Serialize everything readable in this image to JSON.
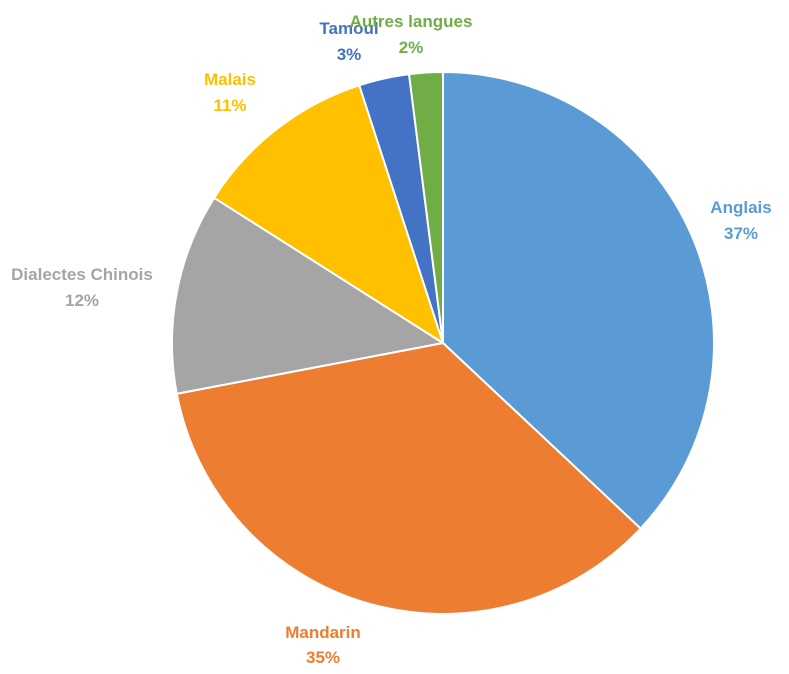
{
  "chart_data": {
    "type": "pie",
    "title": "",
    "slices": [
      {
        "name": "Anglais",
        "value": 37,
        "label": "37%",
        "color": "#5B9BD5"
      },
      {
        "name": "Mandarin",
        "value": 35,
        "label": "35%",
        "color": "#ED7D31"
      },
      {
        "name": "Dialectes Chinois",
        "value": 12,
        "label": "12%",
        "color": "#A5A5A5"
      },
      {
        "name": "Malais",
        "value": 11,
        "label": "11%",
        "color": "#FFC000"
      },
      {
        "name": "Tamoul",
        "value": 3,
        "label": "3%",
        "color": "#4472C4"
      },
      {
        "name": "Autres langues",
        "value": 2,
        "label": "2%",
        "color": "#70AD47"
      }
    ],
    "legend": "none",
    "data_labels": "outside"
  }
}
